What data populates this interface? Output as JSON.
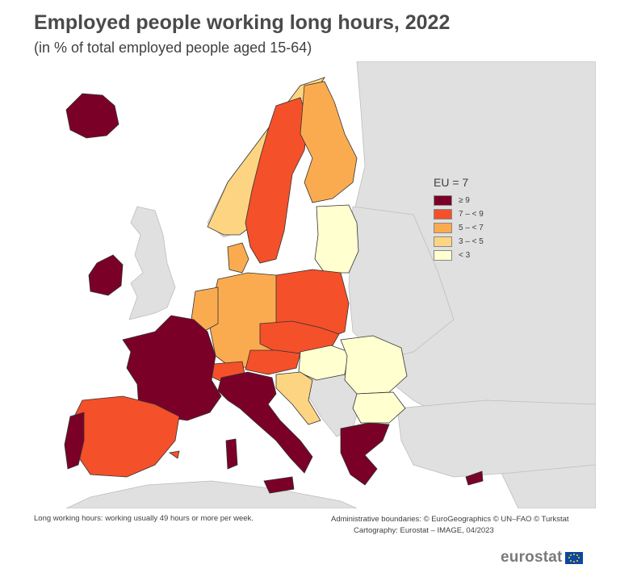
{
  "title": "Employed people working long hours, 2022",
  "subtitle": "(in % of total employed people aged 15-64)",
  "legend": {
    "title": "EU = 7",
    "items": [
      {
        "label": "≥ 9",
        "color": "#7b0028"
      },
      {
        "label": "7 – < 9",
        "color": "#f4502a"
      },
      {
        "label": "5 – < 7",
        "color": "#fbab4f"
      },
      {
        "label": "3 – < 5",
        "color": "#fdd582"
      },
      {
        "label": "< 3",
        "color": "#ffffd0"
      }
    ]
  },
  "colors": {
    "non_eu": "#e0e0e0",
    "sea": "#ffffff",
    "border": "#333333"
  },
  "footnote": "Long working hours: working usually 49 hours or more per week.",
  "credits": {
    "line1": "Administrative boundaries: © EuroGeographics © UN–FAO © Turkstat",
    "line2": "Cartography: Eurostat – IMAGE, 04/2023"
  },
  "logo": "eurostat"
}
